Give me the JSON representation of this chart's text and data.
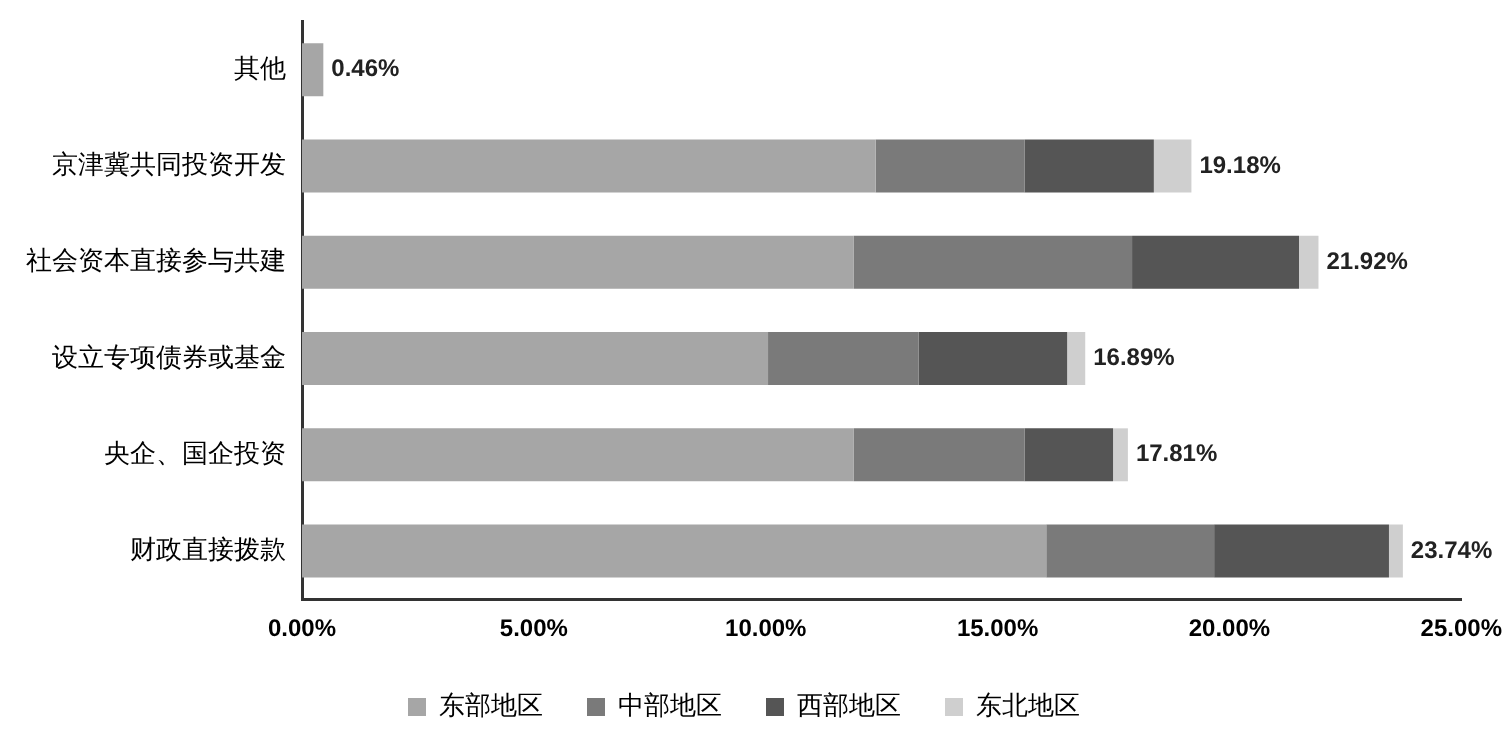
{
  "chart_data": {
    "type": "bar",
    "orientation": "horizontal",
    "stacked": true,
    "categories": [
      "其他",
      "京津冀共同投资开发",
      "社会资本直接参与共建",
      "设立专项债券或基金",
      "央企、国企投资",
      "财政直接拨款"
    ],
    "series": [
      {
        "name": "东部地区",
        "color": "#a6a6a6",
        "values": [
          0.46,
          12.37,
          11.9,
          10.05,
          11.9,
          16.05
        ]
      },
      {
        "name": "中部地区",
        "color": "#7a7a7a",
        "values": [
          0,
          3.21,
          6.0,
          3.25,
          3.68,
          3.62
        ]
      },
      {
        "name": "西部地区",
        "color": "#555555",
        "values": [
          0,
          2.79,
          3.6,
          3.2,
          1.91,
          3.77
        ]
      },
      {
        "name": "东北地区",
        "color": "#cfcfcf",
        "values": [
          0,
          0.81,
          0.42,
          0.39,
          0.32,
          0.3
        ]
      }
    ],
    "totals": [
      "0.46%",
      "19.18%",
      "21.92%",
      "16.89%",
      "17.81%",
      "23.74%"
    ],
    "xlim": [
      0,
      25
    ],
    "xticks": [
      {
        "value": 0,
        "label": "0.00%"
      },
      {
        "value": 5,
        "label": "5.00%"
      },
      {
        "value": 10,
        "label": "10.00%"
      },
      {
        "value": 15,
        "label": "15.00%"
      },
      {
        "value": 20,
        "label": "20.00%"
      },
      {
        "value": 25,
        "label": "25.00%"
      }
    ],
    "grid": false,
    "legend": "bottom"
  }
}
